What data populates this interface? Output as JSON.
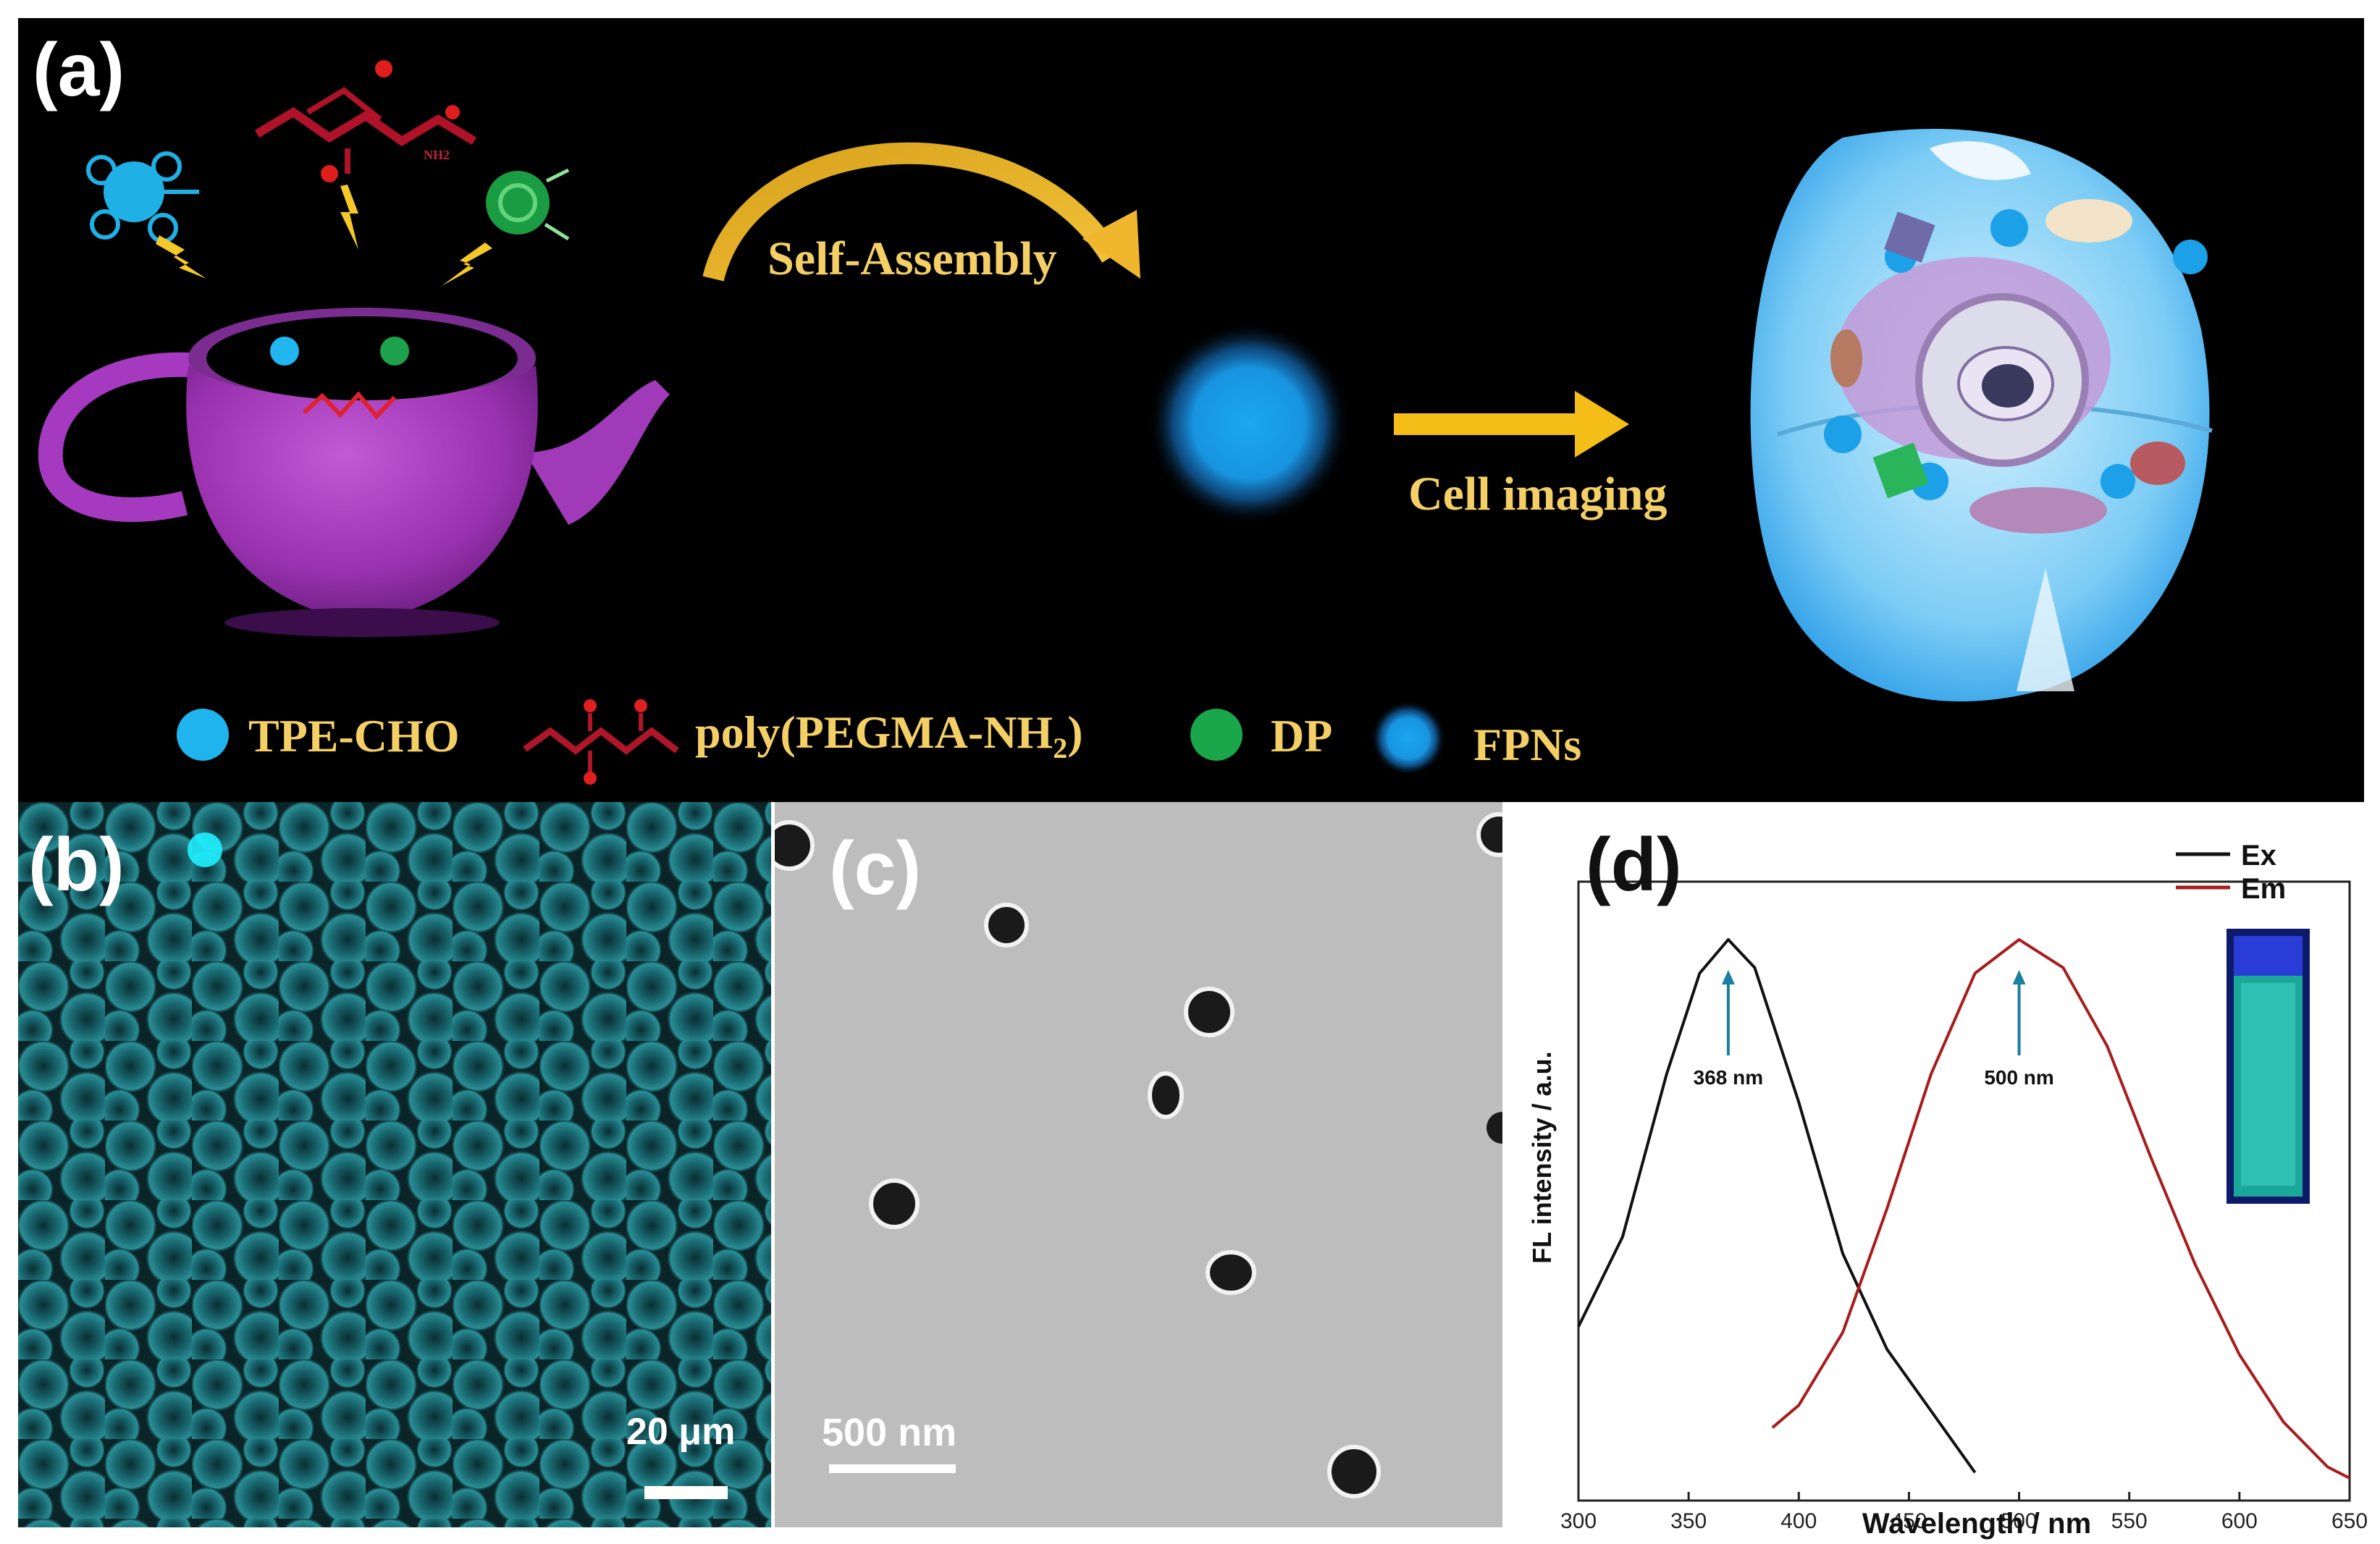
{
  "panel_a": {
    "label": "(a)",
    "arrow1_label": "Self-Assembly",
    "arrow2_label": "Cell imaging",
    "polymer_subscript": "NH2",
    "legend": [
      {
        "text": "TPE-CHO",
        "color": "#1fb4ee",
        "icon": "blue-dot-icon"
      },
      {
        "text_prefix": "poly(PEGMA-NH",
        "text_sub": "2",
        "text_suffix": ")",
        "color": "#d41b2a",
        "icon": "polymer-chain-icon"
      },
      {
        "text": "DP",
        "color": "#1aa64a",
        "icon": "green-dot-icon"
      },
      {
        "text": "FPNs",
        "color": "#1ea2ec",
        "icon": "glowing-nanoparticle-icon"
      }
    ]
  },
  "panel_b": {
    "label": "(b)",
    "scale_bar": "20 μm"
  },
  "panel_c": {
    "label": "(c)",
    "scale_bar": "500 nm"
  },
  "panel_d": {
    "label": "(d)",
    "xlabel": "Wavelength / nm",
    "ylabel": "FL intensity / a.u.",
    "xticks": [
      "300",
      "350",
      "400",
      "450",
      "500",
      "550",
      "600",
      "650"
    ],
    "legend": [
      {
        "name": "Ex",
        "color": "#111111"
      },
      {
        "name": "Em",
        "color": "#a81c1c"
      }
    ],
    "annotations": [
      "368 nm",
      "500 nm"
    ]
  },
  "chart_data": {
    "type": "line",
    "xlabel": "Wavelength / nm",
    "ylabel": "FL intensity / a.u.",
    "xlim": [
      300,
      650
    ],
    "series": [
      {
        "name": "Ex",
        "color": "#111111",
        "x": [
          300,
          320,
          340,
          355,
          368,
          380,
          400,
          420,
          440,
          460,
          480
        ],
        "y": [
          0.31,
          0.47,
          0.76,
          0.94,
          1.0,
          0.95,
          0.71,
          0.44,
          0.27,
          0.16,
          0.05
        ]
      },
      {
        "name": "Em",
        "color": "#a81c1c",
        "x": [
          388,
          400,
          420,
          440,
          460,
          480,
          500,
          520,
          540,
          560,
          580,
          600,
          620,
          640,
          650
        ],
        "y": [
          0.13,
          0.17,
          0.3,
          0.52,
          0.76,
          0.94,
          1.0,
          0.95,
          0.81,
          0.61,
          0.42,
          0.26,
          0.14,
          0.06,
          0.04
        ]
      }
    ],
    "peaks": [
      {
        "x": 368,
        "label": "368 nm"
      },
      {
        "x": 500,
        "label": "500 nm"
      }
    ]
  }
}
